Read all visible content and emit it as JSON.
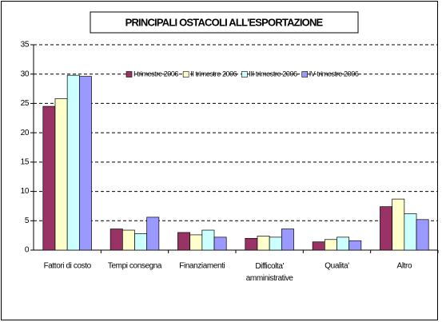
{
  "chart_data": {
    "type": "bar",
    "title": "PRINCIPALI OSTACOLI ALL'ESPORTAZIONE",
    "categories": [
      "Fattori di costo",
      "Tempi consegna",
      "Finanziamenti",
      "Difficolta' amministrative",
      "Qualita'",
      "Altro"
    ],
    "series": [
      {
        "name": "I trimestre 2006",
        "color": "#993366",
        "values": [
          24.5,
          3.6,
          3.0,
          2.0,
          1.4,
          7.4
        ]
      },
      {
        "name": "II trimestre 2006",
        "color": "#FFFFCC",
        "values": [
          25.8,
          3.4,
          2.6,
          2.4,
          1.8,
          8.7
        ]
      },
      {
        "name": "III trimestre 2006",
        "color": "#CCFFFF",
        "values": [
          29.8,
          2.8,
          3.4,
          2.2,
          2.2,
          6.2
        ]
      },
      {
        "name": "IV trimestre 2006",
        "color": "#9999FF",
        "values": [
          29.6,
          5.6,
          2.2,
          3.6,
          1.6,
          5.2
        ]
      }
    ],
    "ylim": [
      0,
      35
    ],
    "yticks": [
      0,
      5,
      10,
      15,
      20,
      25,
      30,
      35
    ],
    "grid": true,
    "legend": "top"
  }
}
